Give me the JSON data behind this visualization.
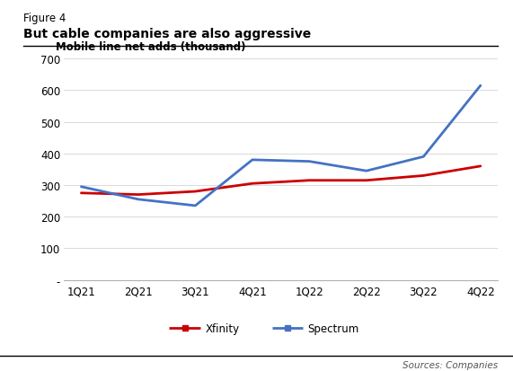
{
  "figure_label": "Figure 4",
  "title": "But cable companies are also aggressive",
  "ylabel": "Mobile line net adds (thousand)",
  "categories": [
    "1Q21",
    "2Q21",
    "3Q21",
    "4Q21",
    "1Q22",
    "2Q22",
    "3Q22",
    "4Q22"
  ],
  "xfinity": [
    275,
    270,
    280,
    305,
    315,
    315,
    330,
    360
  ],
  "spectrum": [
    295,
    255,
    235,
    380,
    375,
    345,
    390,
    615
  ],
  "xfinity_color": "#cc0000",
  "spectrum_color": "#4472c4",
  "ylim": [
    0,
    700
  ],
  "yticks": [
    0,
    100,
    200,
    300,
    400,
    500,
    600,
    700
  ],
  "ytick_labels": [
    "-",
    "100",
    "200",
    "300",
    "400",
    "500",
    "600",
    "700"
  ],
  "source_text": "Sources: Companies",
  "background_color": "#ffffff",
  "line_width": 2.0,
  "figure_label_fontsize": 8.5,
  "title_fontsize": 10,
  "ylabel_fontsize": 8.5,
  "tick_fontsize": 8.5,
  "legend_fontsize": 8.5,
  "source_fontsize": 7.5
}
